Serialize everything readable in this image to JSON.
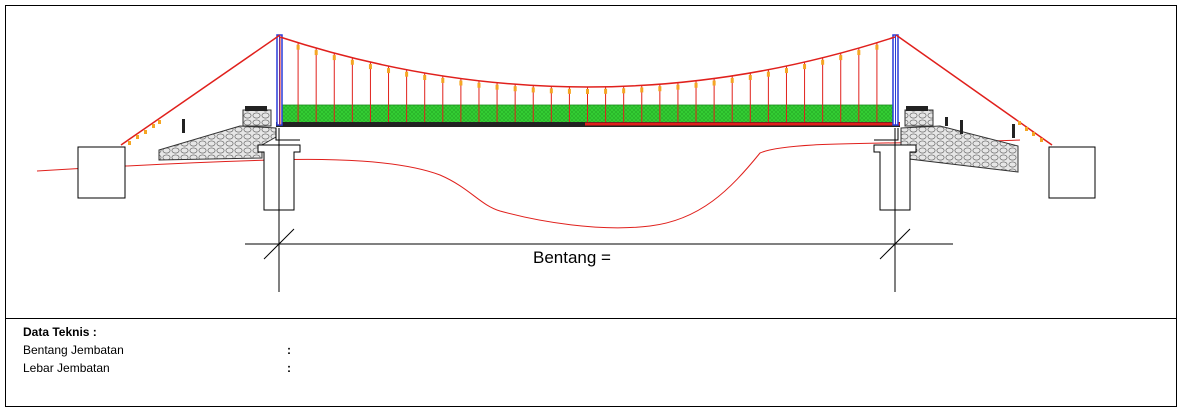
{
  "drawing": {
    "span_label": "Bentang ="
  },
  "technical_data": {
    "heading": "Data Teknis :",
    "rows": [
      {
        "label": "Bentang Jembatan",
        "separator": ":"
      },
      {
        "label": "Lebar Jembatan",
        "separator": ":"
      }
    ]
  },
  "colors": {
    "cable": "#e0201c",
    "deck": "#33cc33",
    "tower": "#2a3cd8",
    "hanger_clamp": "#f5a623",
    "stone": "#c8c8c8",
    "line": "#000000"
  }
}
